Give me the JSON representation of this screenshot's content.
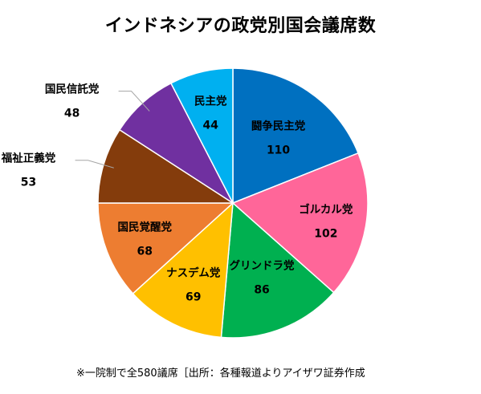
{
  "title": "インドネシアの政党別国会議席数",
  "footnote": "※一院制で全580議席［出所：各種報道よりアイザワ証券作成",
  "chart_data": {
    "type": "pie",
    "title": "インドネシアの政党別国会議席数",
    "categories": [
      "闘争民主党",
      "ゴルカル党",
      "グリンドラ党",
      "ナスデム党",
      "国民覚醒党",
      "福祉正義党",
      "国民信託党",
      "民主党"
    ],
    "values": [
      110,
      102,
      86,
      69,
      68,
      53,
      48,
      44
    ],
    "colors": [
      "#0070C0",
      "#FF6699",
      "#00B050",
      "#FFC000",
      "#ED7D31",
      "#843C0C",
      "#7030A0",
      "#00B0F0"
    ],
    "start_angle": "12 o'clock",
    "direction": "clockwise"
  }
}
